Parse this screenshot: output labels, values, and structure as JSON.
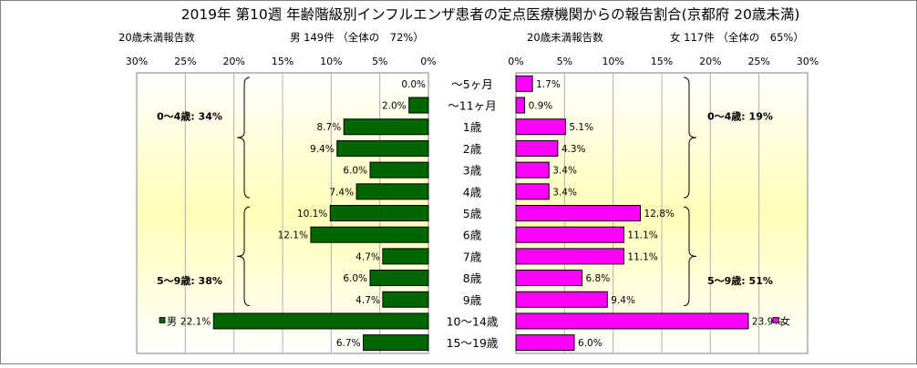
{
  "title": "2019年 第10週 年齢階級別インフルエンザ患者の定点医療機関からの報告割合(京都府 20歳未満)",
  "chart_data": [
    {
      "type": "bar",
      "orientation": "horizontal",
      "direction": "right-to-left",
      "header_left": "20歳未満報告数",
      "header_right": "男 149件 （全体の　72%）",
      "categories": [
        "～5ヶ月",
        "～11ヶ月",
        "1歳",
        "2歳",
        "3歳",
        "4歳",
        "5歳",
        "6歳",
        "7歳",
        "8歳",
        "9歳",
        "10～14歳",
        "15～19歳"
      ],
      "values": [
        0.0,
        2.0,
        8.7,
        9.4,
        6.0,
        7.4,
        10.1,
        12.1,
        4.7,
        6.0,
        4.7,
        22.1,
        6.7
      ],
      "value_labels": [
        "0.0%",
        "2.0%",
        "8.7%",
        "9.4%",
        "6.0%",
        "7.4%",
        "10.1%",
        "12.1%",
        "4.7%",
        "6.0%",
        "4.7%",
        "22.1%",
        "6.7%"
      ],
      "xlim": [
        0,
        30
      ],
      "ticks": [
        30,
        25,
        20,
        15,
        10,
        5,
        0
      ],
      "tick_labels": [
        "30%",
        "25%",
        "20%",
        "15%",
        "10%",
        "5%",
        "0%"
      ],
      "grid": true,
      "legend": "男",
      "legend_position": "bottom-left",
      "group_labels": [
        "0～4歳: 34%",
        "5～9歳: 38%"
      ],
      "color": "#006600"
    },
    {
      "type": "bar",
      "orientation": "horizontal",
      "direction": "left-to-right",
      "header_left": "20歳未満報告数",
      "header_right": "女 117件 （全体の　65%）",
      "categories": [
        "～5ヶ月",
        "～11ヶ月",
        "1歳",
        "2歳",
        "3歳",
        "4歳",
        "5歳",
        "6歳",
        "7歳",
        "8歳",
        "9歳",
        "10～14歳",
        "15～19歳"
      ],
      "values": [
        1.7,
        0.9,
        5.1,
        4.3,
        3.4,
        3.4,
        12.8,
        11.1,
        11.1,
        6.8,
        9.4,
        23.9,
        6.0
      ],
      "value_labels": [
        "1.7%",
        "0.9%",
        "5.1%",
        "4.3%",
        "3.4%",
        "3.4%",
        "12.8%",
        "11.1%",
        "11.1%",
        "6.8%",
        "9.4%",
        "23.9%",
        "6.0%"
      ],
      "xlim": [
        0,
        30
      ],
      "ticks": [
        0,
        5,
        10,
        15,
        20,
        25,
        30
      ],
      "tick_labels": [
        "0%",
        "5%",
        "10%",
        "15%",
        "20%",
        "25%",
        "30%"
      ],
      "grid": true,
      "legend": "女",
      "legend_position": "bottom-right",
      "group_labels": [
        "0～4歳: 19%",
        "5～9歳: 51%"
      ],
      "color": "#ff00ff"
    }
  ]
}
